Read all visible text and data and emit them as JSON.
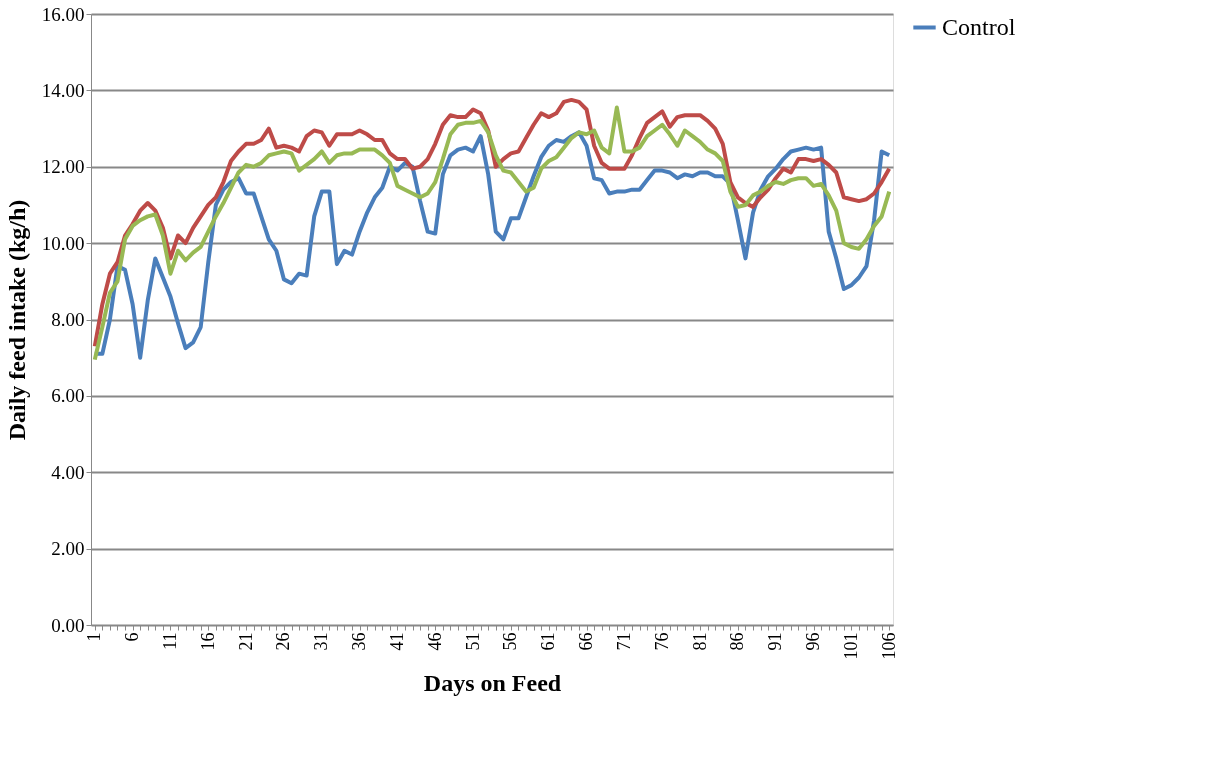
{
  "chart_data": {
    "type": "line",
    "xlabel": "Days on Feed",
    "ylabel": "Daily feed intake (kg/h)",
    "categories": [
      "1",
      null,
      null,
      null,
      null,
      "6",
      null,
      null,
      null,
      null,
      "11",
      null,
      null,
      null,
      null,
      "16",
      null,
      null,
      null,
      null,
      "21",
      null,
      null,
      null,
      null,
      "26",
      null,
      null,
      null,
      null,
      "31",
      null,
      null,
      null,
      null,
      "36",
      null,
      null,
      null,
      null,
      "41",
      null,
      null,
      null,
      null,
      "46",
      null,
      null,
      null,
      null,
      "51",
      null,
      null,
      null,
      null,
      "56",
      null,
      null,
      null,
      null,
      "61",
      null,
      null,
      null,
      null,
      "66",
      null,
      null,
      null,
      null,
      "71",
      null,
      null,
      null,
      null,
      "76",
      null,
      null,
      null,
      null,
      "81",
      null,
      null,
      null,
      null,
      "86",
      null,
      null,
      null,
      null,
      "91",
      null,
      null,
      null,
      null,
      "96",
      null,
      null,
      null,
      null,
      "101",
      null,
      null,
      null,
      null,
      "106"
    ],
    "ylim": [
      0,
      16
    ],
    "yticks": [
      {
        "value": 0,
        "label": "0.00"
      },
      {
        "value": 2,
        "label": "2.00"
      },
      {
        "value": 4,
        "label": "4.00"
      },
      {
        "value": 6,
        "label": "6.00"
      },
      {
        "value": 8,
        "label": "8.00"
      },
      {
        "value": 10,
        "label": "10.00"
      },
      {
        "value": 12,
        "label": "12.00"
      },
      {
        "value": 14,
        "label": "14.00"
      },
      {
        "value": 16,
        "label": "16.00"
      }
    ],
    "grid": "y",
    "legend": "right",
    "marker": "none",
    "line_style": "solid",
    "series": [
      {
        "name": "Control",
        "color": "#4a7ebb",
        "values": [
          7.1,
          7.1,
          8.0,
          9.4,
          9.3,
          8.4,
          7.0,
          8.5,
          9.6,
          9.1,
          8.6,
          7.9,
          7.25,
          7.4,
          7.8,
          9.5,
          11.0,
          11.4,
          11.6,
          11.7,
          11.3,
          11.3,
          10.7,
          10.1,
          9.8,
          9.05,
          8.95,
          9.2,
          9.15,
          10.7,
          11.35,
          11.35,
          9.45,
          9.8,
          9.7,
          10.3,
          10.8,
          11.2,
          11.45,
          12.0,
          11.9,
          12.1,
          12.0,
          11.1,
          10.3,
          10.25,
          11.8,
          12.3,
          12.45,
          12.5,
          12.4,
          12.8,
          11.8,
          10.3,
          10.1,
          10.65,
          10.65,
          11.2,
          11.75,
          12.25,
          12.55,
          12.7,
          12.65,
          12.8,
          12.9,
          12.55,
          11.7,
          11.65,
          11.3,
          11.35,
          11.35,
          11.4,
          11.4,
          11.65,
          11.9,
          11.9,
          11.85,
          11.7,
          11.8,
          11.75,
          11.85,
          11.85,
          11.75,
          11.75,
          11.55,
          10.6,
          9.6,
          10.8,
          11.4,
          11.75,
          11.95,
          12.2,
          12.4,
          12.45,
          12.5,
          12.45,
          12.5,
          10.3,
          9.6,
          8.8,
          8.9,
          9.1,
          9.4,
          10.6,
          12.4,
          12.3
        ]
      },
      {
        "color": "#be4b48",
        "values": [
          7.3,
          8.4,
          9.2,
          9.5,
          10.2,
          10.5,
          10.85,
          11.05,
          10.85,
          10.4,
          9.6,
          10.2,
          10.0,
          10.4,
          10.7,
          11.0,
          11.2,
          11.6,
          12.15,
          12.4,
          12.6,
          12.6,
          12.7,
          13.0,
          12.5,
          12.55,
          12.5,
          12.4,
          12.8,
          12.95,
          12.9,
          12.55,
          12.85,
          12.85,
          12.85,
          12.95,
          12.85,
          12.7,
          12.7,
          12.35,
          12.2,
          12.2,
          11.95,
          12.0,
          12.2,
          12.6,
          13.1,
          13.35,
          13.3,
          13.3,
          13.5,
          13.4,
          12.95,
          12.0,
          12.2,
          12.35,
          12.4,
          12.75,
          13.1,
          13.4,
          13.3,
          13.4,
          13.7,
          13.75,
          13.7,
          13.5,
          12.55,
          12.1,
          11.95,
          11.95,
          11.95,
          12.3,
          12.75,
          13.15,
          13.3,
          13.45,
          13.05,
          13.3,
          13.35,
          13.35,
          13.35,
          13.2,
          13.0,
          12.6,
          11.6,
          11.2,
          11.05,
          10.95,
          11.2,
          11.4,
          11.7,
          11.95,
          11.85,
          12.2,
          12.2,
          12.15,
          12.2,
          12.05,
          11.85,
          11.2,
          11.15,
          11.1,
          11.15,
          11.3,
          11.6,
          11.95
        ]
      },
      {
        "color": "#98b954",
        "values": [
          6.95,
          7.8,
          8.7,
          9.0,
          10.1,
          10.45,
          10.6,
          10.7,
          10.75,
          10.2,
          9.2,
          9.8,
          9.55,
          9.75,
          9.9,
          10.3,
          10.7,
          11.05,
          11.45,
          11.85,
          12.05,
          12.0,
          12.1,
          12.3,
          12.35,
          12.4,
          12.35,
          11.9,
          12.05,
          12.2,
          12.4,
          12.1,
          12.3,
          12.35,
          12.35,
          12.45,
          12.45,
          12.45,
          12.3,
          12.1,
          11.5,
          11.4,
          11.3,
          11.2,
          11.3,
          11.6,
          12.2,
          12.85,
          13.1,
          13.15,
          13.15,
          13.2,
          12.9,
          12.3,
          11.9,
          11.85,
          11.6,
          11.35,
          11.45,
          11.95,
          12.15,
          12.25,
          12.5,
          12.75,
          12.9,
          12.85,
          12.95,
          12.5,
          12.35,
          13.55,
          12.4,
          12.4,
          12.5,
          12.8,
          12.95,
          13.1,
          12.85,
          12.55,
          12.95,
          12.8,
          12.65,
          12.45,
          12.35,
          12.15,
          11.35,
          10.95,
          11.0,
          11.25,
          11.35,
          11.5,
          11.6,
          11.55,
          11.65,
          11.7,
          11.7,
          11.5,
          11.55,
          11.25,
          10.85,
          10.0,
          9.9,
          9.85,
          10.1,
          10.45,
          10.7,
          11.35
        ]
      }
    ]
  }
}
